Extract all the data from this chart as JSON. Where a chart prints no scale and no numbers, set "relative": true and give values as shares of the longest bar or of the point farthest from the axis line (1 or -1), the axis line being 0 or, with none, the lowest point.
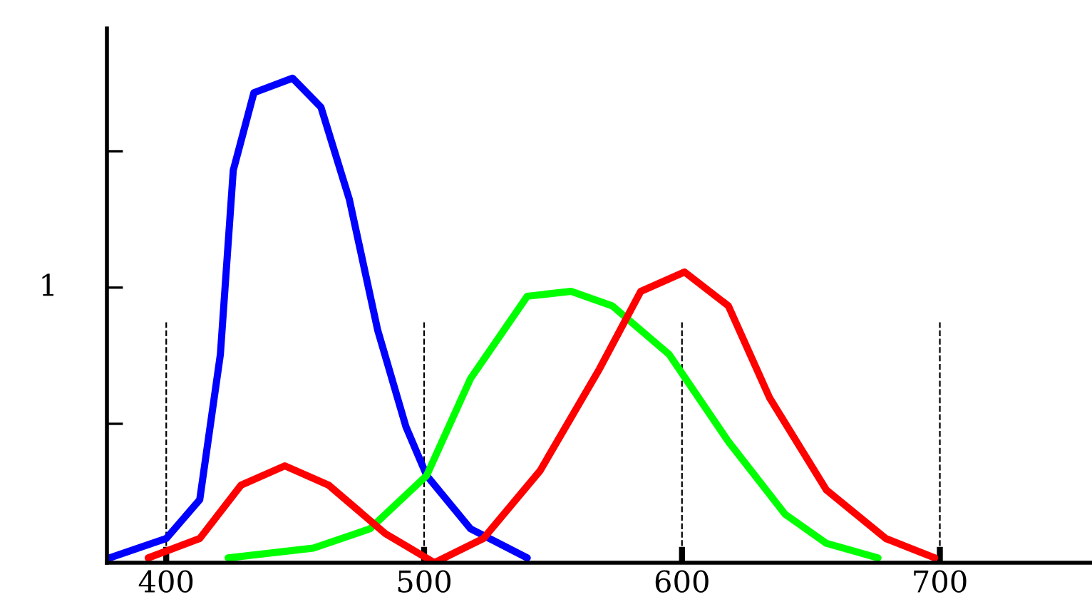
{
  "chart_data": {
    "type": "line",
    "relative": true,
    "xlim": [
      377,
      759
    ],
    "xticks": [
      400,
      500,
      600,
      700
    ],
    "grid": false,
    "legend": false,
    "marker": "none",
    "line_style": "solid",
    "annotations": [
      "1"
    ],
    "series": [
      {
        "color": "#0000ff",
        "x": [
          378,
          400,
          413,
          421,
          426,
          434,
          449,
          460,
          471,
          482,
          493,
          501,
          518,
          540
        ],
        "values": [
          0.01,
          0.05,
          0.13,
          0.43,
          0.81,
          0.97,
          1.0,
          0.94,
          0.75,
          0.48,
          0.28,
          0.18,
          0.07,
          0.01
        ]
      },
      {
        "color": "#00ff00",
        "x": [
          424,
          457,
          479,
          501,
          518,
          540,
          557,
          573,
          595,
          618,
          640,
          656,
          676
        ],
        "values": [
          0.01,
          0.03,
          0.07,
          0.18,
          0.38,
          0.55,
          0.56,
          0.53,
          0.43,
          0.25,
          0.1,
          0.04,
          0.01
        ]
      },
      {
        "color": "#ff0000",
        "x": [
          393,
          413,
          429,
          446,
          463,
          485,
          504,
          523,
          545,
          568,
          584,
          601,
          618,
          634,
          656,
          679,
          698
        ],
        "values": [
          0.01,
          0.05,
          0.16,
          0.2,
          0.16,
          0.06,
          0.0,
          0.05,
          0.19,
          0.4,
          0.56,
          0.6,
          0.53,
          0.34,
          0.15,
          0.05,
          0.01
        ]
      }
    ],
    "ref_lines": [
      {
        "axis": "x",
        "value": 400,
        "line_style": "dashed",
        "color": "#000000"
      },
      {
        "axis": "x",
        "value": 500,
        "line_style": "dashed",
        "color": "#000000"
      },
      {
        "axis": "x",
        "value": 600,
        "line_style": "dashed",
        "color": "#000000"
      },
      {
        "axis": "x",
        "value": 700,
        "line_style": "dashed",
        "color": "#000000"
      }
    ]
  }
}
